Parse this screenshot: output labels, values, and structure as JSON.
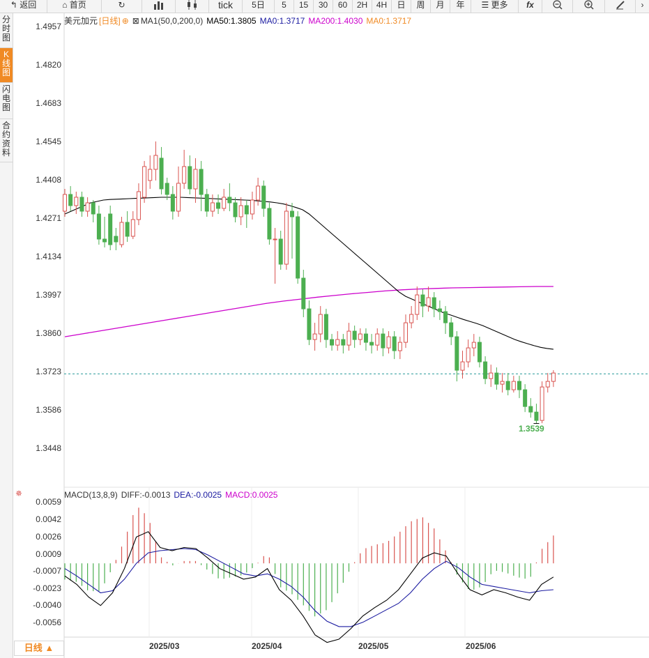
{
  "toolbar": {
    "back_label": "返回",
    "home_label": "首页",
    "tick_label": "tick",
    "periods": [
      "5日",
      "5",
      "15",
      "30",
      "60",
      "2H",
      "4H",
      "日",
      "周",
      "月",
      "年"
    ],
    "more_label": "更多",
    "fx_label": "fx"
  },
  "sidebar": {
    "items": [
      {
        "label": "分时图"
      },
      {
        "label": "K线图"
      },
      {
        "label": "闪电图"
      },
      {
        "label": "合约资料"
      }
    ]
  },
  "legend": {
    "symbol": "美元加元",
    "period": "[日线]",
    "ma_params": "MA1(50,0,200,0)",
    "ma50": "MA50:1.3805",
    "ma0": "MA0:1.3717",
    "ma200": "MA200:1.4030",
    "ma0b": "MA0:1.3717",
    "colors": {
      "ma50": "#000000",
      "ma0": "#1a1aa0",
      "ma200": "#cc00cc",
      "ma0b": "#f08a24"
    }
  },
  "macd_legend": {
    "title": "MACD(13,8,9)",
    "diff": "DIFF:-0.0013",
    "dea": "DEA:-0.0025",
    "macd": "MACD:0.0025"
  },
  "main_yaxis": [
    "1.4957",
    "1.4820",
    "1.4683",
    "1.4545",
    "1.4408",
    "1.4271",
    "1.4134",
    "1.3997",
    "1.3860",
    "1.3723",
    "1.3586",
    "1.3448"
  ],
  "macd_yaxis": [
    "0.0059",
    "0.0042",
    "0.0026",
    "0.0009",
    "-0.0007",
    "-0.0023",
    "-0.0040",
    "-0.0056"
  ],
  "xaxis": [
    "2025/03",
    "2025/04",
    "2025/05",
    "2025/06"
  ],
  "min_label": "1.3539",
  "bottom_tab": "日线 ▲",
  "colors": {
    "up": "#d9534f",
    "down": "#4caf50",
    "accent": "#f08a24",
    "current_line": "#2a9a9a"
  },
  "chart_data": {
    "type": "candlestick",
    "title": "美元加元 [日线]",
    "price_range": [
      1.3448,
      1.4957
    ],
    "candles": [
      [
        1.43,
        1.436,
        1.438,
        1.428
      ],
      [
        1.436,
        1.432,
        1.439,
        1.43
      ],
      [
        1.432,
        1.435,
        1.437,
        1.429
      ],
      [
        1.435,
        1.43,
        1.437,
        1.428
      ],
      [
        1.43,
        1.433,
        1.435,
        1.428
      ],
      [
        1.433,
        1.429,
        1.434,
        1.426
      ],
      [
        1.429,
        1.42,
        1.432,
        1.418
      ],
      [
        1.42,
        1.419,
        1.428,
        1.417
      ],
      [
        1.429,
        1.418,
        1.432,
        1.416
      ],
      [
        1.421,
        1.419,
        1.424,
        1.416
      ],
      [
        1.418,
        1.426,
        1.428,
        1.417
      ],
      [
        1.426,
        1.421,
        1.43,
        1.419
      ],
      [
        1.421,
        1.427,
        1.43,
        1.42
      ],
      [
        1.427,
        1.437,
        1.44,
        1.425
      ],
      [
        1.435,
        1.446,
        1.448,
        1.433
      ],
      [
        1.441,
        1.445,
        1.45,
        1.438
      ],
      [
        1.445,
        1.45,
        1.455,
        1.441
      ],
      [
        1.449,
        1.438,
        1.453,
        1.436
      ],
      [
        1.44,
        1.436,
        1.442,
        1.434
      ],
      [
        1.436,
        1.43,
        1.439,
        1.427
      ],
      [
        1.43,
        1.44,
        1.446,
        1.428
      ],
      [
        1.44,
        1.446,
        1.452,
        1.438
      ],
      [
        1.446,
        1.438,
        1.45,
        1.436
      ],
      [
        1.438,
        1.445,
        1.449,
        1.433
      ],
      [
        1.445,
        1.436,
        1.448,
        1.43
      ],
      [
        1.436,
        1.43,
        1.438,
        1.428
      ],
      [
        1.43,
        1.433,
        1.436,
        1.428
      ],
      [
        1.433,
        1.431,
        1.436,
        1.429
      ],
      [
        1.431,
        1.435,
        1.438,
        1.43
      ],
      [
        1.435,
        1.433,
        1.44,
        1.43
      ],
      [
        1.433,
        1.428,
        1.435,
        1.426
      ],
      [
        1.428,
        1.432,
        1.435,
        1.425
      ],
      [
        1.432,
        1.429,
        1.434,
        1.424
      ],
      [
        1.429,
        1.434,
        1.437,
        1.427
      ],
      [
        1.434,
        1.439,
        1.442,
        1.432
      ],
      [
        1.439,
        1.431,
        1.441,
        1.428
      ],
      [
        1.431,
        1.42,
        1.433,
        1.418
      ],
      [
        1.42,
        1.42,
        1.424,
        1.404
      ],
      [
        1.42,
        1.411,
        1.423,
        1.409
      ],
      [
        1.411,
        1.43,
        1.433,
        1.409
      ],
      [
        1.43,
        1.428,
        1.433,
        1.413
      ],
      [
        1.428,
        1.406,
        1.43,
        1.404
      ],
      [
        1.406,
        1.395,
        1.409,
        1.392
      ],
      [
        1.395,
        1.384,
        1.398,
        1.382
      ],
      [
        1.384,
        1.386,
        1.39,
        1.38
      ],
      [
        1.386,
        1.393,
        1.396,
        1.383
      ],
      [
        1.393,
        1.384,
        1.395,
        1.381
      ],
      [
        1.384,
        1.382,
        1.386,
        1.38
      ],
      [
        1.382,
        1.384,
        1.387,
        1.38
      ],
      [
        1.384,
        1.382,
        1.386,
        1.379
      ],
      [
        1.382,
        1.387,
        1.39,
        1.38
      ],
      [
        1.387,
        1.384,
        1.389,
        1.381
      ],
      [
        1.384,
        1.386,
        1.388,
        1.382
      ],
      [
        1.386,
        1.383,
        1.388,
        1.38
      ],
      [
        1.383,
        1.382,
        1.386,
        1.379
      ],
      [
        1.382,
        1.386,
        1.388,
        1.38
      ],
      [
        1.386,
        1.381,
        1.388,
        1.378
      ],
      [
        1.381,
        1.385,
        1.387,
        1.379
      ],
      [
        1.385,
        1.38,
        1.387,
        1.377
      ],
      [
        1.38,
        1.383,
        1.385,
        1.377
      ],
      [
        1.383,
        1.39,
        1.393,
        1.381
      ],
      [
        1.39,
        1.393,
        1.396,
        1.388
      ],
      [
        1.393,
        1.4,
        1.403,
        1.391
      ],
      [
        1.4,
        1.396,
        1.402,
        1.392
      ],
      [
        1.396,
        1.399,
        1.403,
        1.394
      ],
      [
        1.399,
        1.395,
        1.401,
        1.392
      ],
      [
        1.395,
        1.394,
        1.398,
        1.391
      ],
      [
        1.394,
        1.39,
        1.396,
        1.386
      ],
      [
        1.39,
        1.385,
        1.392,
        1.382
      ],
      [
        1.385,
        1.373,
        1.387,
        1.369
      ],
      [
        1.373,
        1.376,
        1.38,
        1.37
      ],
      [
        1.376,
        1.381,
        1.384,
        1.374
      ],
      [
        1.381,
        1.383,
        1.386,
        1.378
      ],
      [
        1.383,
        1.376,
        1.385,
        1.374
      ],
      [
        1.376,
        1.37,
        1.378,
        1.368
      ],
      [
        1.37,
        1.372,
        1.375,
        1.367
      ],
      [
        1.372,
        1.368,
        1.374,
        1.366
      ],
      [
        1.368,
        1.369,
        1.372,
        1.365
      ],
      [
        1.369,
        1.366,
        1.372,
        1.364
      ],
      [
        1.366,
        1.369,
        1.371,
        1.365
      ],
      [
        1.369,
        1.366,
        1.371,
        1.363
      ],
      [
        1.366,
        1.36,
        1.368,
        1.358
      ],
      [
        1.36,
        1.358,
        1.363,
        1.356
      ],
      [
        1.358,
        1.355,
        1.361,
        1.354
      ],
      [
        1.355,
        1.367,
        1.369,
        1.354
      ],
      [
        1.367,
        1.369,
        1.372,
        1.365
      ],
      [
        1.369,
        1.372,
        1.373,
        1.367
      ]
    ],
    "ma50": [
      1.429,
      1.43,
      1.431,
      1.432,
      1.433,
      1.4335,
      1.434,
      1.4342,
      1.4343,
      1.4344,
      1.4345,
      1.4346,
      1.4347,
      1.4348,
      1.4349,
      1.435,
      1.435,
      1.435,
      1.435,
      1.4349,
      1.4348,
      1.4347,
      1.4346,
      1.4345,
      1.4344,
      1.4343,
      1.4342,
      1.4341,
      1.434,
      1.4339,
      1.4337,
      1.4335,
      1.4333,
      1.433,
      1.4326,
      1.432,
      1.4313,
      1.4305,
      1.429,
      1.427,
      1.425,
      1.423,
      1.421,
      1.419,
      1.417,
      1.415,
      1.413,
      1.411,
      1.409,
      1.407,
      1.405,
      1.403,
      1.401,
      1.3995,
      1.3985,
      1.3975,
      1.3965,
      1.3955,
      1.3945,
      1.3935,
      1.3928,
      1.392,
      1.3912,
      1.3905,
      1.3898,
      1.389,
      1.388,
      1.387,
      1.386,
      1.385,
      1.384,
      1.3832,
      1.3825,
      1.3818,
      1.3812,
      1.3808,
      1.3805
    ],
    "ma200": [
      1.385,
      1.386,
      1.387,
      1.388,
      1.389,
      1.39,
      1.391,
      1.392,
      1.393,
      1.394,
      1.395,
      1.396,
      1.397,
      1.3978,
      1.3985,
      1.3992,
      1.3998,
      1.4004,
      1.4009,
      1.4014,
      1.4018,
      1.4021,
      1.4023,
      1.4025,
      1.4026,
      1.4027,
      1.4028,
      1.4029,
      1.403,
      1.403
    ],
    "current_price": 1.3717,
    "min_price": 1.3539,
    "macd": {
      "diff": [
        -0.0012,
        -0.002,
        -0.0032,
        -0.004,
        -0.0028,
        -0.0005,
        0.0025,
        0.003,
        0.0015,
        0.0012,
        0.0015,
        0.0014,
        0.0005,
        -0.0005,
        -0.001,
        -0.0015,
        -0.0013,
        -0.0005,
        -0.0025,
        -0.0035,
        -0.005,
        -0.0068,
        -0.0075,
        -0.0072,
        -0.0062,
        -0.005,
        -0.0042,
        -0.0035,
        -0.0025,
        -0.001,
        0.0005,
        0.001,
        0.0007,
        -0.001,
        -0.0025,
        -0.003,
        -0.0025,
        -0.0028,
        -0.0032,
        -0.0035,
        -0.002,
        -0.0013
      ],
      "dea": [
        -0.0005,
        -0.0012,
        -0.002,
        -0.0028,
        -0.0026,
        -0.0015,
        0.0,
        0.001,
        0.0012,
        0.0013,
        0.0014,
        0.0013,
        0.0008,
        0.0002,
        -0.0004,
        -0.001,
        -0.0012,
        -0.001,
        -0.0015,
        -0.0022,
        -0.0032,
        -0.0045,
        -0.0055,
        -0.006,
        -0.006,
        -0.0056,
        -0.005,
        -0.0044,
        -0.0038,
        -0.0028,
        -0.0015,
        -0.0005,
        0.0002,
        -0.0004,
        -0.0013,
        -0.002,
        -0.0022,
        -0.0024,
        -0.0026,
        -0.0028,
        -0.0026,
        -0.0025
      ],
      "range": [
        -0.007,
        0.0059
      ]
    }
  }
}
